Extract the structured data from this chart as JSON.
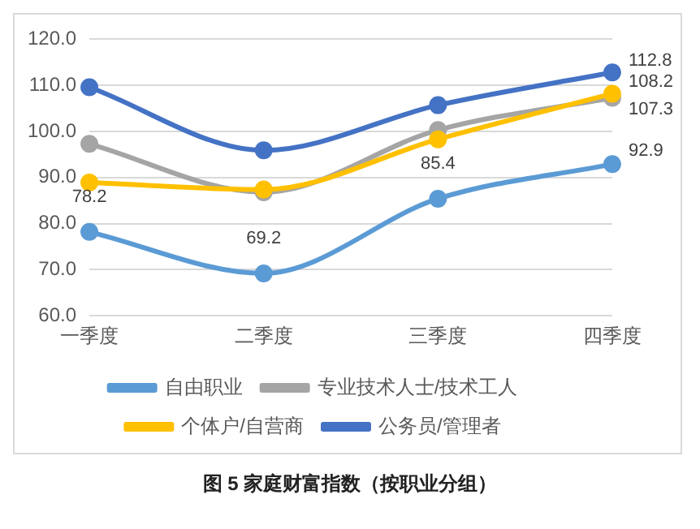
{
  "chart_data": {
    "type": "line",
    "title": "图 5 家庭财富指数（按职业分组）",
    "categories": [
      "一季度",
      "二季度",
      "三季度",
      "四季度"
    ],
    "series": [
      {
        "name": "自由职业",
        "color": "#5b9bd5",
        "values": [
          78.2,
          69.2,
          85.4,
          92.9
        ],
        "value_labels": [
          "78.2",
          "69.2",
          "85.4",
          "92.9"
        ]
      },
      {
        "name": "专业技术人士/技术工人",
        "color": "#a5a5a5",
        "values": [
          97.3,
          86.8,
          100.3,
          107.3
        ],
        "value_labels": [
          null,
          null,
          null,
          "107.3"
        ]
      },
      {
        "name": "个体户/自营商",
        "color": "#ffc000",
        "values": [
          88.9,
          87.4,
          98.3,
          108.2
        ],
        "value_labels": [
          null,
          null,
          null,
          "108.2"
        ]
      },
      {
        "name": "公务员/管理者",
        "color": "#4472c4",
        "values": [
          109.6,
          95.9,
          105.7,
          112.8
        ],
        "value_labels": [
          null,
          null,
          null,
          "112.8"
        ]
      }
    ],
    "ylim": [
      60,
      120
    ],
    "yticks": [
      {
        "value": 60,
        "label": "60.0"
      },
      {
        "value": 70,
        "label": "70.0"
      },
      {
        "value": 80,
        "label": "80.0"
      },
      {
        "value": 90,
        "label": "90.0"
      },
      {
        "value": 100,
        "label": "100.0"
      },
      {
        "value": 110,
        "label": "110.0"
      },
      {
        "value": 120,
        "label": "120.0"
      }
    ],
    "grid": "y",
    "legend": "bottom",
    "marker": "circle",
    "line_style": "solid"
  }
}
